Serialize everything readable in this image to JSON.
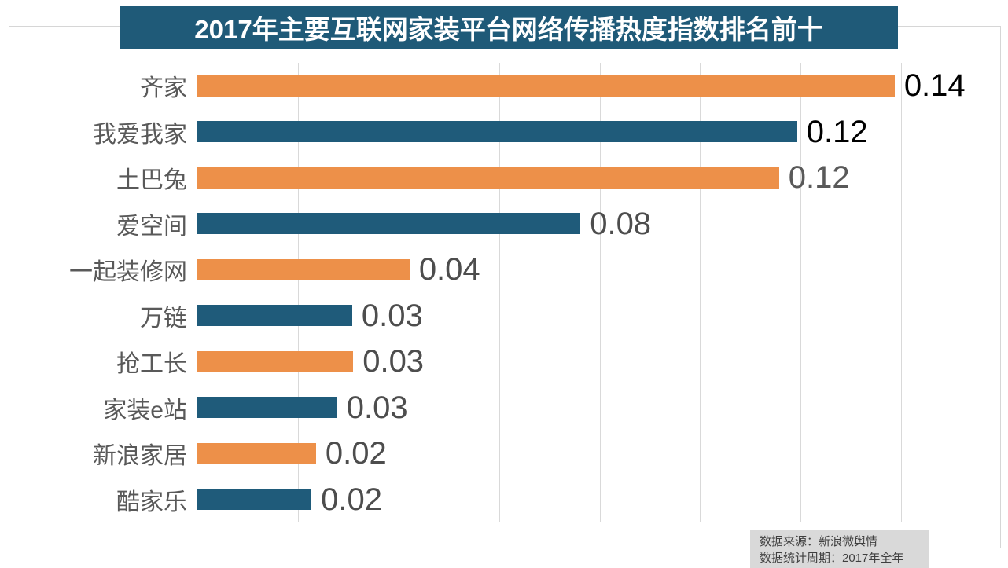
{
  "title": "2017年主要互联网家装平台网络传播热度指数排名前十",
  "chart_data": {
    "type": "bar",
    "orientation": "horizontal",
    "title": "2017年主要互联网家装平台网络传播热度指数排名前十",
    "categories": [
      "齐家",
      "我爱我家",
      "土巴兔",
      "爱空间",
      "一起装修网",
      "万链",
      "抢工长",
      "家装e站",
      "新浪家居",
      "酷家乐"
    ],
    "values": [
      0.14,
      0.12,
      0.12,
      0.08,
      0.04,
      0.03,
      0.03,
      0.03,
      0.02,
      0.02
    ],
    "value_labels": [
      "0.14",
      "0.12",
      "0.12",
      "0.08",
      "0.04",
      "0.03",
      "0.03",
      "0.03",
      "0.02",
      "0.02"
    ],
    "raw_lengths": [
      0.1387,
      0.1193,
      0.1157,
      0.0762,
      0.0422,
      0.0308,
      0.031,
      0.0278,
      0.0236,
      0.0227
    ],
    "xlim": [
      0,
      0.16
    ],
    "gridline_interval": 0.02,
    "grid": "vertical-on",
    "legend": "none",
    "xlabel": "",
    "ylabel": "",
    "bar_colors_alternate": [
      "#ED9049",
      "#1F5B7A"
    ],
    "value_label_colors": [
      "#000000",
      "#000000",
      "#595959",
      "#4D4D4D",
      "#4D4D4D",
      "#4D4D4D",
      "#4D4D4D",
      "#4D4D4D",
      "#4D4D4D",
      "#4D4D4D"
    ]
  },
  "colors": {
    "title_bg": "#1F5A78",
    "title_text": "#FFFFFF",
    "gridline": "#D9D9D9",
    "category_text": "#595959",
    "footer_bg": "#D9D9D9",
    "footer_text": "#3F3F3F"
  },
  "source": {
    "line1": "数据来源：新浪微舆情",
    "line2": "数据统计周期：2017年全年"
  }
}
